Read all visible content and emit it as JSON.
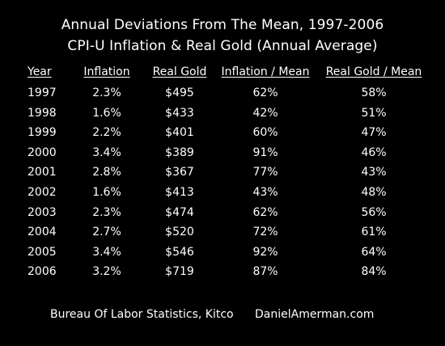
{
  "title_line1": "Annual Deviations From The Mean, 1997-2006",
  "title_line2": "CPI-U Inflation & Real Gold (Annual Average)",
  "columns": [
    "Year",
    "Inflation",
    "Real Gold",
    "Inflation / Mean",
    "Real Gold / Mean"
  ],
  "rows": [
    [
      "1997",
      "2.3%",
      "$495",
      "62%",
      "58%"
    ],
    [
      "1998",
      "1.6%",
      "$433",
      "42%",
      "51%"
    ],
    [
      "1999",
      "2.2%",
      "$401",
      "60%",
      "47%"
    ],
    [
      "2000",
      "3.4%",
      "$389",
      "91%",
      "46%"
    ],
    [
      "2001",
      "2.8%",
      "$367",
      "77%",
      "43%"
    ],
    [
      "2002",
      "1.6%",
      "$413",
      "43%",
      "48%"
    ],
    [
      "2003",
      "2.3%",
      "$474",
      "62%",
      "56%"
    ],
    [
      "2004",
      "2.7%",
      "$520",
      "72%",
      "61%"
    ],
    [
      "2005",
      "3.4%",
      "$546",
      "92%",
      "64%"
    ],
    [
      "2006",
      "3.2%",
      "$719",
      "87%",
      "84%"
    ]
  ],
  "footer_source": "Bureau Of Labor Statistics, Kitco",
  "footer_site": "DanielAmerman.com",
  "colors": {
    "background": "#000000",
    "text": "#ffffff"
  }
}
